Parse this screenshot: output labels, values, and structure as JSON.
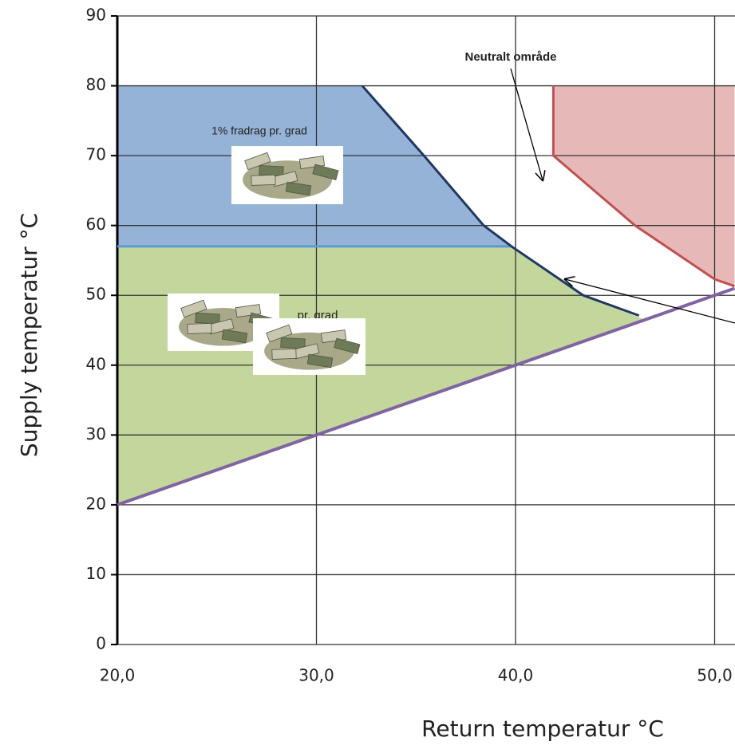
{
  "chart_data": {
    "type": "area",
    "x_label": "Return temperatur °C",
    "y_label": "Supply temperatur °C",
    "xlim": [
      20,
      51
    ],
    "ylim": [
      0,
      90
    ],
    "xticks": [
      {
        "value": 20,
        "label": "20,0"
      },
      {
        "value": 30,
        "label": "30,0"
      },
      {
        "value": 40,
        "label": "40,0"
      },
      {
        "value": 50,
        "label": "50,0"
      }
    ],
    "yticks": [
      0,
      10,
      20,
      30,
      40,
      50,
      60,
      70,
      80,
      90
    ],
    "grid": true,
    "regions": [
      {
        "color": "#95b3d7",
        "x": [
          20,
          20,
          32.3,
          35.4,
          38.4,
          39.8
        ],
        "y": [
          57,
          80,
          80,
          70,
          60,
          57
        ]
      },
      {
        "color": "#c3d69b",
        "x": [
          20,
          39.8,
          43.4,
          46.5,
          20
        ],
        "y": [
          57,
          57,
          50,
          46.5,
          20
        ]
      },
      {
        "color": "#e6b9b8",
        "x": [
          41.9,
          51,
          51,
          50,
          46,
          41.9
        ],
        "y": [
          80,
          80,
          51.3,
          52.3,
          60,
          70
        ]
      }
    ],
    "lines": [
      {
        "color": "#5b9bd5",
        "width": 3,
        "x": [
          20,
          39.8
        ],
        "y": [
          57,
          57
        ]
      },
      {
        "color": "#1f3864",
        "width": 3,
        "x": [
          32.3,
          35.4,
          38.4,
          39.8,
          43.4,
          46.2
        ],
        "y": [
          80,
          70,
          60,
          57,
          50,
          47.1
        ]
      },
      {
        "color": "#8064a2",
        "width": 4,
        "x": [
          20,
          51
        ],
        "y": [
          20,
          51
        ]
      },
      {
        "color": "#c0504d",
        "width": 3,
        "x": [
          41.9,
          41.9,
          46,
          50,
          51
        ],
        "y": [
          80,
          70,
          60,
          52.3,
          51.3
        ]
      }
    ],
    "annotations": [
      "Neutralt område",
      "1% fradrag pr. grad",
      "pr. grad"
    ]
  }
}
